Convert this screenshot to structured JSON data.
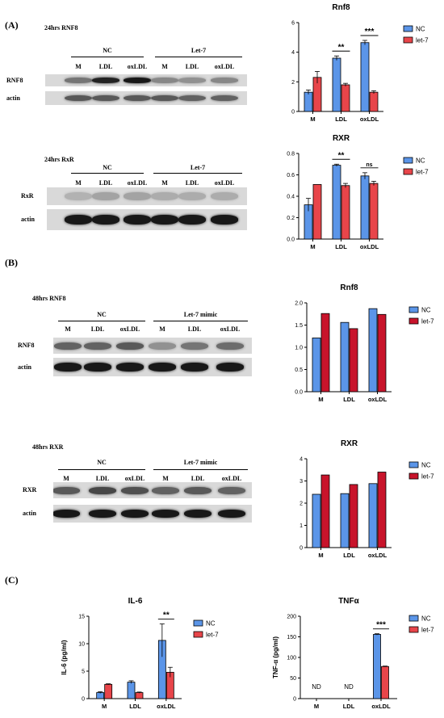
{
  "panels": {
    "A": "(A)",
    "B": "(B)",
    "C": "(C)"
  },
  "colors": {
    "nc": "#5b95e8",
    "let7": "#e8454a",
    "let7_dark": "#c8142b",
    "axis": "#000000"
  },
  "blots": [
    {
      "title": "24hrs RNF8",
      "groups": [
        "NC",
        "Let-7"
      ],
      "lanes": [
        "M",
        "LDL",
        "oxLDL",
        "M",
        "LDL",
        "oxLDL"
      ],
      "rows": [
        {
          "label": "RNF8",
          "intensity": [
            0.45,
            0.9,
            0.95,
            0.35,
            0.3,
            0.35
          ]
        },
        {
          "label": "actin",
          "intensity": [
            0.6,
            0.6,
            0.6,
            0.6,
            0.55,
            0.55
          ]
        }
      ]
    },
    {
      "title": "24hrs RxR",
      "groups": [
        "NC",
        "Let-7"
      ],
      "lanes": [
        "M",
        "LDL",
        "oxLDL",
        "M",
        "LDL",
        "oxLDL"
      ],
      "rows": [
        {
          "label": "RxR",
          "intensity": [
            0.12,
            0.2,
            0.2,
            0.15,
            0.15,
            0.15
          ]
        },
        {
          "label": "actin",
          "intensity": [
            0.95,
            0.95,
            0.95,
            0.95,
            0.95,
            0.95
          ]
        }
      ]
    },
    {
      "title": "48hrs RNF8",
      "groups": [
        "NC",
        "Let-7 mimic"
      ],
      "lanes": [
        "M",
        "LDL",
        "oxLDL",
        "M",
        "LDL",
        "oxLDL"
      ],
      "rows": [
        {
          "label": "RNF8",
          "intensity": [
            0.55,
            0.55,
            0.6,
            0.3,
            0.45,
            0.5
          ]
        },
        {
          "label": "actin",
          "intensity": [
            0.95,
            0.95,
            0.95,
            0.95,
            0.95,
            0.95
          ]
        }
      ]
    },
    {
      "title": "48hrs RXR",
      "groups": [
        "NC",
        "Let-7 mimic"
      ],
      "lanes": [
        "M",
        "LDL",
        "oxLDL",
        "M",
        "LDL",
        "oxLDL"
      ],
      "rows": [
        {
          "label": "RXR",
          "intensity": [
            0.6,
            0.7,
            0.65,
            0.55,
            0.6,
            0.55
          ]
        },
        {
          "label": "actin",
          "intensity": [
            0.95,
            0.95,
            0.95,
            0.95,
            0.95,
            0.95
          ]
        }
      ]
    }
  ],
  "chart_data": [
    {
      "type": "bar",
      "title": "Rnf8",
      "categories": [
        "M",
        "LDL",
        "oxLDL"
      ],
      "series": [
        {
          "name": "NC",
          "values": [
            1.3,
            3.6,
            4.65
          ],
          "errors": [
            0.15,
            0.15,
            0.15
          ],
          "color": "#5b95e8"
        },
        {
          "name": "let-7",
          "values": [
            2.3,
            1.8,
            1.3
          ],
          "errors": [
            0.4,
            0.1,
            0.1
          ],
          "color": "#e8454a"
        }
      ],
      "ylim": [
        0,
        6
      ],
      "yticks": [
        0,
        2,
        4,
        6
      ],
      "ylabel": "",
      "annotations": [
        {
          "category": "LDL",
          "text": "**"
        },
        {
          "category": "oxLDL",
          "text": "***"
        }
      ],
      "legend": "right"
    },
    {
      "type": "bar",
      "title": "RXR",
      "categories": [
        "M",
        "LDL",
        "oxLDL"
      ],
      "series": [
        {
          "name": "NC",
          "values": [
            0.32,
            0.69,
            0.59
          ],
          "errors": [
            0.06,
            0.01,
            0.03
          ],
          "color": "#5b95e8"
        },
        {
          "name": "let-7",
          "values": [
            0.51,
            0.5,
            0.52
          ],
          "errors": [
            0.0,
            0.02,
            0.02
          ],
          "color": "#e8454a"
        }
      ],
      "ylim": [
        0,
        0.8
      ],
      "yticks": [
        "0.0",
        "0.2",
        "0.4",
        "0.6",
        "0.8"
      ],
      "ylabel": "",
      "annotations": [
        {
          "category": "LDL",
          "text": "**"
        },
        {
          "category": "oxLDL",
          "text": "ns"
        }
      ],
      "legend": "right"
    },
    {
      "type": "bar",
      "title": "Rnf8",
      "categories": [
        "M",
        "LDL",
        "oxLDL"
      ],
      "series": [
        {
          "name": "NC",
          "values": [
            1.21,
            1.56,
            1.87
          ],
          "color": "#5b95e8"
        },
        {
          "name": "let-7",
          "values": [
            1.76,
            1.42,
            1.74
          ],
          "color": "#c8142b"
        }
      ],
      "ylim": [
        0,
        2.0
      ],
      "yticks": [
        "0.0",
        "0.5",
        "1.0",
        "1.5",
        "2.0"
      ],
      "ylabel": "",
      "annotations": [],
      "legend": "right"
    },
    {
      "type": "bar",
      "title": "RXR",
      "categories": [
        "M",
        "LDL",
        "oxLDL"
      ],
      "series": [
        {
          "name": "NC",
          "values": [
            2.4,
            2.43,
            2.88
          ],
          "color": "#5b95e8"
        },
        {
          "name": "let-7",
          "values": [
            3.27,
            2.84,
            3.4
          ],
          "color": "#c8142b"
        }
      ],
      "ylim": [
        0,
        4
      ],
      "yticks": [
        "0",
        "1",
        "2",
        "3",
        "4"
      ],
      "ylabel": "",
      "annotations": [],
      "legend": "right"
    },
    {
      "type": "bar",
      "title": "IL-6",
      "categories": [
        "M",
        "LDL",
        "oxLDL"
      ],
      "series": [
        {
          "name": "NC",
          "values": [
            1.1,
            3.0,
            10.6
          ],
          "errors": [
            0.15,
            0.25,
            3.0
          ],
          "color": "#5b95e8"
        },
        {
          "name": "let-7",
          "values": [
            2.6,
            1.1,
            4.8
          ],
          "errors": [
            0.1,
            0.1,
            0.9
          ],
          "color": "#e8454a"
        }
      ],
      "ylim": [
        0,
        15
      ],
      "yticks": [
        "0",
        "5",
        "10",
        "15"
      ],
      "ylabel": "IL-6 (pg/ml)",
      "annotations": [
        {
          "category": "oxLDL",
          "text": "**"
        }
      ],
      "legend": "right"
    },
    {
      "type": "bar",
      "title": "TNFα",
      "categories": [
        "M",
        "LDL",
        "oxLDL"
      ],
      "series": [
        {
          "name": "NC",
          "values": [
            0,
            0,
            156
          ],
          "errors": [
            0,
            0,
            1.5
          ],
          "color": "#5b95e8"
        },
        {
          "name": "let-7",
          "values": [
            0,
            0,
            78
          ],
          "errors": [
            0,
            0,
            1
          ],
          "color": "#e8454a"
        }
      ],
      "ylim": [
        0,
        200
      ],
      "yticks": [
        "0",
        "50",
        "100",
        "150",
        "200"
      ],
      "ylabel": "TNF-α (pg/ml)",
      "annotations": [
        {
          "category": "oxLDL",
          "text": "***"
        }
      ],
      "nd_labels": [
        {
          "category": "M",
          "text": "ND"
        },
        {
          "category": "LDL",
          "text": "ND"
        }
      ],
      "legend": "right"
    }
  ]
}
